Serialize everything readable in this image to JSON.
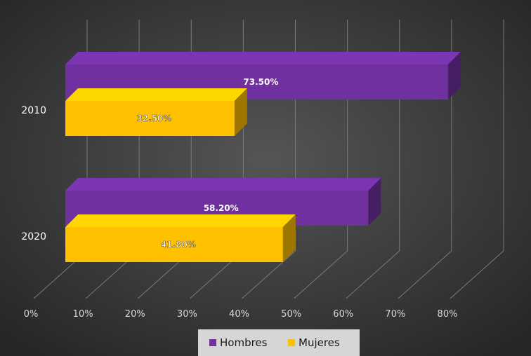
{
  "chart_data": {
    "type": "bar",
    "orientation": "horizontal",
    "style": "3d",
    "categories": [
      "2010",
      "2020"
    ],
    "series": [
      {
        "name": "Hombres",
        "values": [
          73.5,
          58.2
        ],
        "labels": [
          "73.50%",
          "58.20%"
        ],
        "color": "#7030a0"
      },
      {
        "name": "Mujeres",
        "values": [
          32.5,
          41.8
        ],
        "labels": [
          "32.50%",
          "41.80%"
        ],
        "color": "#ffc000"
      }
    ],
    "x_ticks": [
      "0%",
      "10%",
      "20%",
      "30%",
      "40%",
      "50%",
      "60%",
      "70%",
      "80%"
    ],
    "xlim": [
      0,
      80
    ],
    "grid": true,
    "legend_position": "bottom",
    "background": "#3a3a3a"
  }
}
